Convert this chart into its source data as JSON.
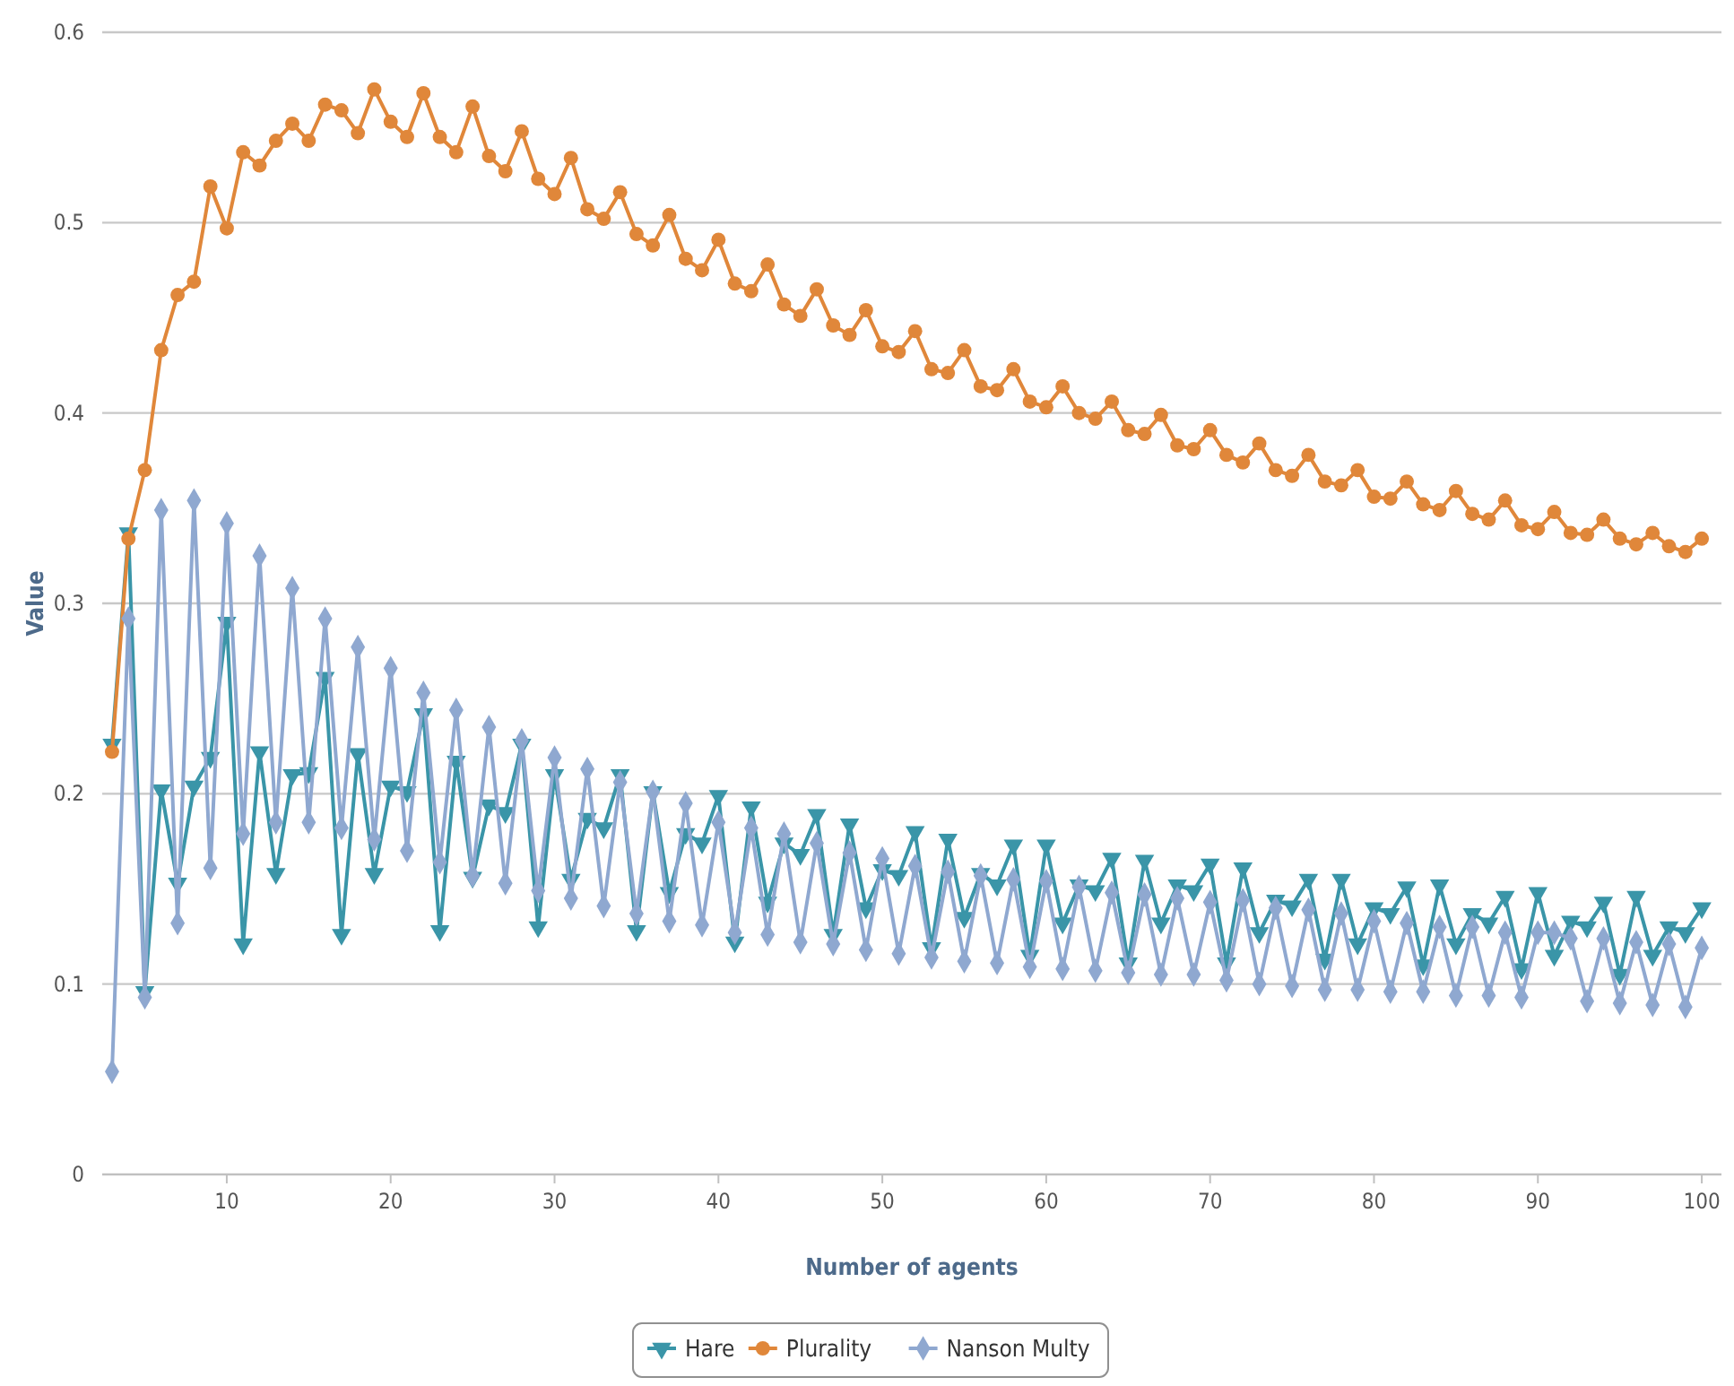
{
  "chart_data": {
    "type": "line",
    "xlabel": "Number of agents",
    "ylabel": "Value",
    "x": [
      3,
      4,
      5,
      6,
      7,
      8,
      9,
      10,
      11,
      12,
      13,
      14,
      15,
      16,
      17,
      18,
      19,
      20,
      21,
      22,
      23,
      24,
      25,
      26,
      27,
      28,
      29,
      30,
      31,
      32,
      33,
      34,
      35,
      36,
      37,
      38,
      39,
      40,
      41,
      42,
      43,
      44,
      45,
      46,
      47,
      48,
      49,
      50,
      51,
      52,
      53,
      54,
      55,
      56,
      57,
      58,
      59,
      60,
      61,
      62,
      63,
      64,
      65,
      66,
      67,
      68,
      69,
      70,
      71,
      72,
      73,
      74,
      75,
      76,
      77,
      78,
      79,
      80,
      81,
      82,
      83,
      84,
      85,
      86,
      87,
      88,
      89,
      90,
      91,
      92,
      93,
      94,
      95,
      96,
      97,
      98,
      99,
      100
    ],
    "series": [
      {
        "name": "Hare",
        "color": "#3a95a8",
        "marker": "triangle",
        "values": [
          0.226,
          0.337,
          0.096,
          0.202,
          0.153,
          0.204,
          0.219,
          0.29,
          0.121,
          0.222,
          0.158,
          0.21,
          0.211,
          0.261,
          0.126,
          0.221,
          0.158,
          0.204,
          0.201,
          0.242,
          0.128,
          0.217,
          0.156,
          0.194,
          0.19,
          0.226,
          0.13,
          0.21,
          0.155,
          0.187,
          0.182,
          0.21,
          0.128,
          0.201,
          0.148,
          0.179,
          0.174,
          0.199,
          0.122,
          0.193,
          0.143,
          0.174,
          0.168,
          0.189,
          0.126,
          0.184,
          0.14,
          0.16,
          0.157,
          0.18,
          0.119,
          0.176,
          0.135,
          0.158,
          0.152,
          0.173,
          0.115,
          0.173,
          0.132,
          0.152,
          0.149,
          0.166,
          0.111,
          0.165,
          0.132,
          0.152,
          0.149,
          0.163,
          0.111,
          0.161,
          0.127,
          0.144,
          0.141,
          0.155,
          0.113,
          0.155,
          0.121,
          0.14,
          0.137,
          0.151,
          0.11,
          0.152,
          0.121,
          0.137,
          0.132,
          0.146,
          0.108,
          0.148,
          0.115,
          0.133,
          0.13,
          0.143,
          0.105,
          0.146,
          0.115,
          0.13,
          0.127,
          0.14
        ]
      },
      {
        "name": "Plurality",
        "color": "#e0873a",
        "marker": "circle",
        "values": [
          0.222,
          0.334,
          0.37,
          0.433,
          0.462,
          0.469,
          0.519,
          0.497,
          0.537,
          0.53,
          0.543,
          0.552,
          0.543,
          0.562,
          0.559,
          0.547,
          0.57,
          0.553,
          0.545,
          0.568,
          0.545,
          0.537,
          0.561,
          0.535,
          0.527,
          0.548,
          0.523,
          0.515,
          0.534,
          0.507,
          0.502,
          0.516,
          0.494,
          0.488,
          0.504,
          0.481,
          0.475,
          0.491,
          0.468,
          0.464,
          0.478,
          0.457,
          0.451,
          0.465,
          0.446,
          0.441,
          0.454,
          0.435,
          0.432,
          0.443,
          0.423,
          0.421,
          0.433,
          0.414,
          0.412,
          0.423,
          0.406,
          0.403,
          0.414,
          0.4,
          0.397,
          0.406,
          0.391,
          0.389,
          0.399,
          0.383,
          0.381,
          0.391,
          0.378,
          0.374,
          0.384,
          0.37,
          0.367,
          0.378,
          0.364,
          0.362,
          0.37,
          0.356,
          0.355,
          0.364,
          0.352,
          0.349,
          0.359,
          0.347,
          0.344,
          0.354,
          0.341,
          0.339,
          0.348,
          0.337,
          0.336,
          0.344,
          0.334,
          0.331,
          0.337,
          0.33,
          0.327,
          0.334
        ]
      },
      {
        "name": "Nanson Multy",
        "color": "#8fa8d0",
        "marker": "diamond",
        "values": [
          0.054,
          0.292,
          0.093,
          0.349,
          0.132,
          0.354,
          0.161,
          0.342,
          0.179,
          0.325,
          0.185,
          0.308,
          0.185,
          0.292,
          0.182,
          0.277,
          0.176,
          0.266,
          0.17,
          0.253,
          0.164,
          0.244,
          0.157,
          0.235,
          0.153,
          0.228,
          0.149,
          0.219,
          0.145,
          0.213,
          0.141,
          0.206,
          0.137,
          0.201,
          0.133,
          0.195,
          0.131,
          0.185,
          0.127,
          0.182,
          0.126,
          0.179,
          0.122,
          0.174,
          0.121,
          0.169,
          0.118,
          0.166,
          0.116,
          0.162,
          0.114,
          0.159,
          0.112,
          0.157,
          0.111,
          0.155,
          0.109,
          0.154,
          0.108,
          0.151,
          0.107,
          0.148,
          0.106,
          0.147,
          0.105,
          0.145,
          0.105,
          0.143,
          0.102,
          0.144,
          0.1,
          0.14,
          0.099,
          0.139,
          0.097,
          0.137,
          0.097,
          0.133,
          0.096,
          0.132,
          0.096,
          0.13,
          0.094,
          0.13,
          0.094,
          0.127,
          0.093,
          0.127,
          0.127,
          0.124,
          0.091,
          0.124,
          0.09,
          0.122,
          0.089,
          0.121,
          0.088,
          0.119
        ]
      }
    ],
    "xlim": [
      2.4,
      101.2
    ],
    "xticks": [
      10,
      20,
      30,
      40,
      50,
      60,
      70,
      80,
      90,
      100
    ],
    "ylim": [
      0,
      0.6
    ],
    "yticks": [
      0,
      0.1,
      0.2,
      0.3,
      0.4,
      0.5,
      0.6
    ],
    "grid": "y",
    "legend": "bottom",
    "line_style": "solid"
  }
}
